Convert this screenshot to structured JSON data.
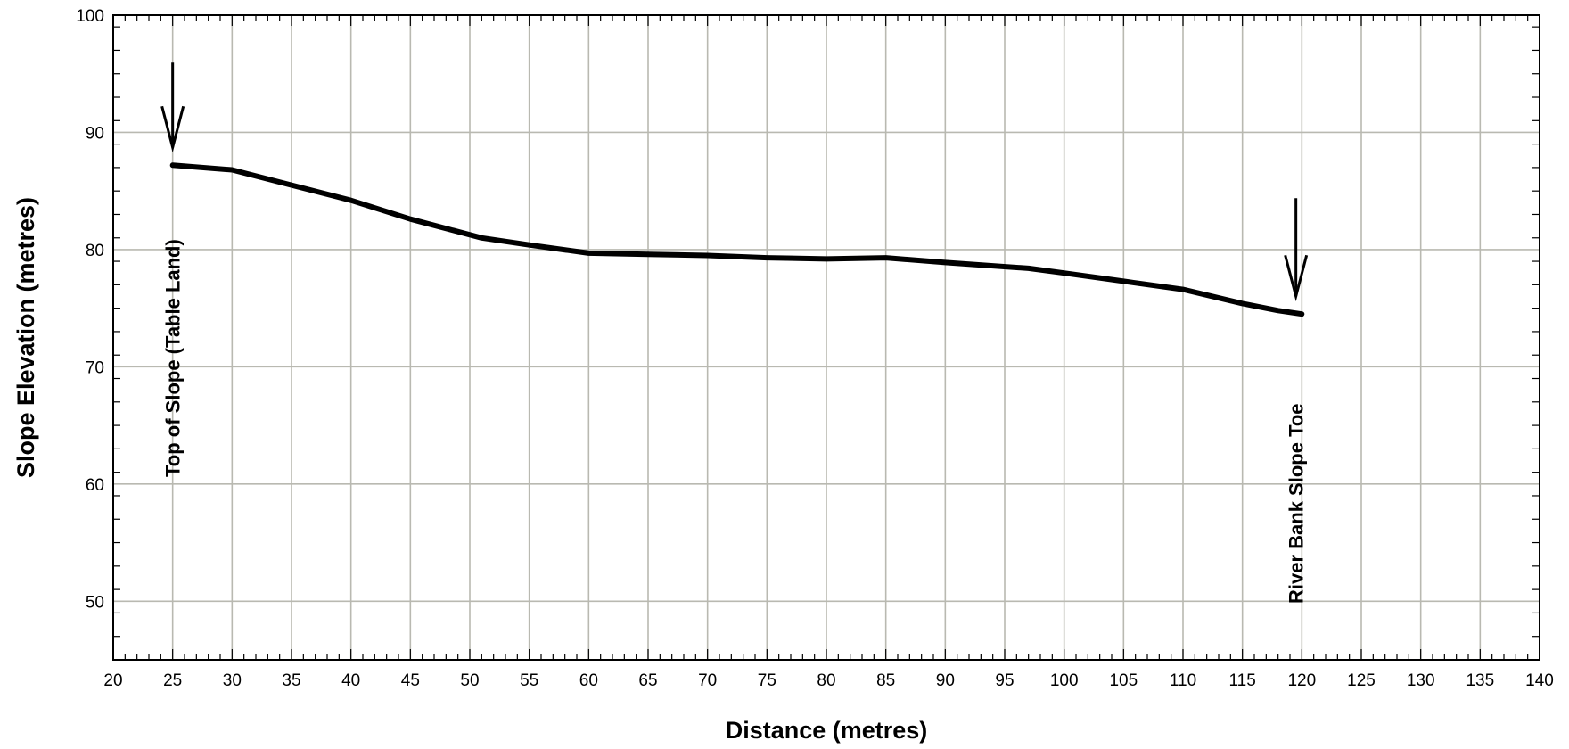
{
  "chart_data": {
    "type": "line",
    "title": "",
    "xlabel": "Distance (metres)",
    "ylabel": "Slope Elevation (metres)",
    "xlim": [
      20,
      140
    ],
    "ylim": [
      45,
      100
    ],
    "x_ticks": [
      20,
      25,
      30,
      35,
      40,
      45,
      50,
      55,
      60,
      65,
      70,
      75,
      80,
      85,
      90,
      95,
      100,
      105,
      110,
      115,
      120,
      125,
      130,
      135,
      140
    ],
    "x_tick_labels": [
      "20",
      "25",
      "30",
      "35",
      "40",
      "45",
      "50",
      "55",
      "60",
      "65",
      "70",
      "75",
      "80",
      "85",
      "90",
      "95",
      "100",
      "105",
      "110",
      "115",
      "120",
      "125",
      "130",
      "135",
      "140"
    ],
    "y_ticks": [
      50,
      60,
      70,
      80,
      90,
      100
    ],
    "y_tick_labels": [
      "50",
      "60",
      "70",
      "80",
      "90",
      "100"
    ],
    "grid": true,
    "series": [
      {
        "color": "#000000",
        "x": [
          25,
          30,
          35,
          40,
          45,
          51,
          55,
          60,
          65,
          70,
          75,
          80,
          85,
          90,
          97,
          100,
          105,
          110,
          115,
          118,
          120
        ],
        "y": [
          87.2,
          86.8,
          85.5,
          84.2,
          82.6,
          81.0,
          80.4,
          79.7,
          79.6,
          79.5,
          79.3,
          79.2,
          79.3,
          78.9,
          78.4,
          78.0,
          77.3,
          76.6,
          75.4,
          74.8,
          74.5
        ]
      }
    ],
    "annotations": [
      {
        "text": "Top of Slope (Table Land)",
        "x": 25,
        "y": 87.2
      },
      {
        "text": "River Bank Slope Toe",
        "x": 119.5,
        "y": 74.5
      }
    ]
  }
}
